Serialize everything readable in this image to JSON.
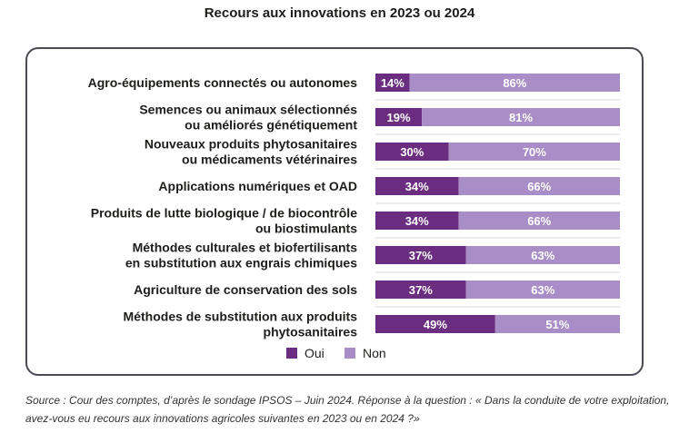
{
  "chart_data": {
    "type": "bar",
    "orientation": "horizontal",
    "stacked": true,
    "percent_stacked": true,
    "title": "Recours aux innovations en 2023 ou 2024",
    "categories": [
      [
        "Agro-équipements connectés ou autonomes"
      ],
      [
        "Semences ou animaux sélectionnés",
        "ou améliorés génétiquement"
      ],
      [
        "Nouveaux produits phytosanitaires",
        "ou médicaments vétérinaires"
      ],
      [
        "Applications numériques et OAD"
      ],
      [
        "Produits de lutte biologique / de biocontrôle",
        "ou biostimulants"
      ],
      [
        "Méthodes culturales et biofertilisants",
        "en substitution aux engrais chimiques"
      ],
      [
        "Agriculture de conservation des sols"
      ],
      [
        "Méthodes de substitution aux produits",
        "phytosanitaires"
      ]
    ],
    "series": [
      {
        "name": "Oui",
        "color": "#6b2d7f",
        "values": [
          14,
          19,
          30,
          34,
          34,
          37,
          37,
          49
        ],
        "labels": [
          "14%",
          "19%",
          "30%",
          "34%",
          "34%",
          "37%",
          "37%",
          "49%"
        ]
      },
      {
        "name": "Non",
        "color": "#a98dc7",
        "values": [
          86,
          81,
          70,
          66,
          66,
          63,
          63,
          51
        ],
        "labels": [
          "86%",
          "81%",
          "70%",
          "66%",
          "66%",
          "63%",
          "63%",
          "51%"
        ]
      }
    ],
    "xlim": [
      0,
      100
    ],
    "grid": false,
    "legend": "bottom-center"
  },
  "source_note": "Source : Cour des comptes, d’après le sondage IPSOS – Juin 2024. Réponse à la question : « Dans la conduite de votre exploitation, avez-vous eu recours aux innovations agricoles suivantes en 2023 ou en 2024 ?»"
}
